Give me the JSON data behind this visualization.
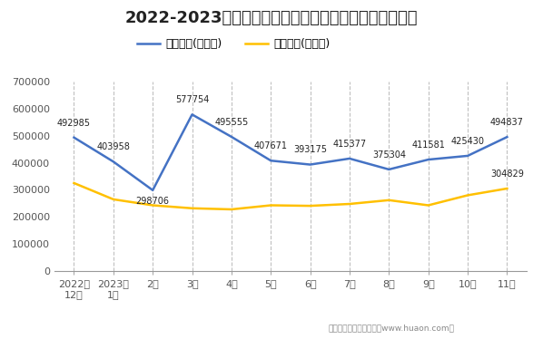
{
  "title": "2022-2023年河北省商品收发货人所在地进、出口额统计",
  "categories": [
    "2022年\n12月",
    "2023年\n1月",
    "2月",
    "3月",
    "4月",
    "5月",
    "6月",
    "7月",
    "8月",
    "9月",
    "10月",
    "11月"
  ],
  "export_values": [
    492985,
    403958,
    298706,
    577754,
    495555,
    407671,
    393175,
    415377,
    375304,
    411581,
    425430,
    494837
  ],
  "import_values": [
    325000,
    265000,
    243000,
    232000,
    228000,
    243000,
    241000,
    248000,
    262000,
    243000,
    280000,
    304829
  ],
  "export_label": "出口总额(万美元)",
  "import_label": "进口总额(万美元)",
  "export_color": "#4472C4",
  "import_color": "#FFC000",
  "ylim": [
    0,
    700000
  ],
  "yticks": [
    0,
    100000,
    200000,
    300000,
    400000,
    500000,
    600000,
    700000
  ],
  "footer": "制图：华经产业研究院（www.huaon.com）",
  "bg_color": "#FFFFFF",
  "plot_bg_color": "#FFFFFF",
  "title_fontsize": 13,
  "label_fontsize": 7,
  "legend_fontsize": 9,
  "gridline_color": "#C0C0C0",
  "gridline_style": "--"
}
